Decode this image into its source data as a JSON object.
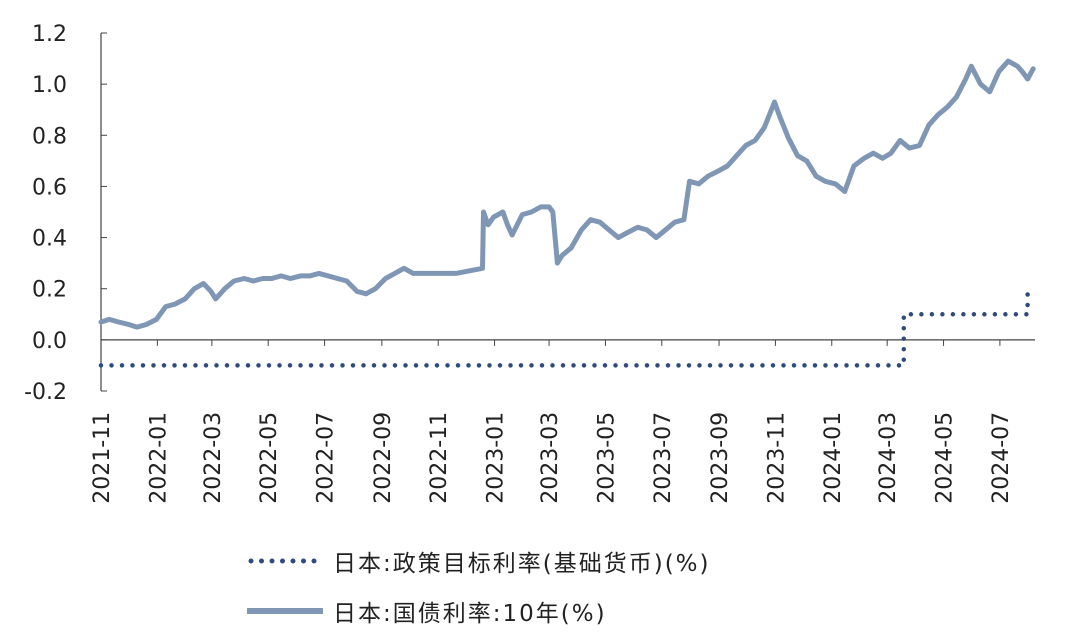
{
  "chart_data": {
    "type": "line",
    "ylim": [
      -0.2,
      1.2
    ],
    "yticks": [
      "1.2",
      "1.0",
      "0.8",
      "0.6",
      "0.4",
      "0.2",
      "0.0",
      "-0.2"
    ],
    "xticks": [
      "2021-11",
      "2022-01",
      "2022-03",
      "2022-05",
      "2022-07",
      "2022-09",
      "2022-11",
      "2023-01",
      "2023-03",
      "2023-05",
      "2023-07",
      "2023-09",
      "2023-11",
      "2024-01",
      "2024-03",
      "2024-05",
      "2024-07"
    ],
    "xlim": [
      "2021-11-01",
      "2024-08-08"
    ],
    "series": [
      {
        "name": "日本:政策目标利率(基础货币)(%)",
        "style": "dotted",
        "color": "#2f4a7d",
        "points": [
          [
            "2021-11-01",
            -0.1
          ],
          [
            "2024-03-18",
            -0.1
          ],
          [
            "2024-03-19",
            0.1
          ],
          [
            "2024-07-30",
            0.1
          ],
          [
            "2024-07-31",
            0.2
          ]
        ]
      },
      {
        "name": "日本:国债利率:10年(%)",
        "style": "solid",
        "color": "#7f97b4",
        "points": [
          [
            "2021-11-01",
            0.07
          ],
          [
            "2021-11-10",
            0.08
          ],
          [
            "2021-11-20",
            0.07
          ],
          [
            "2021-12-01",
            0.06
          ],
          [
            "2021-12-10",
            0.05
          ],
          [
            "2021-12-20",
            0.06
          ],
          [
            "2021-12-31",
            0.08
          ],
          [
            "2022-01-10",
            0.13
          ],
          [
            "2022-01-20",
            0.14
          ],
          [
            "2022-01-31",
            0.16
          ],
          [
            "2022-02-10",
            0.2
          ],
          [
            "2022-02-20",
            0.22
          ],
          [
            "2022-02-28",
            0.19
          ],
          [
            "2022-03-05",
            0.16
          ],
          [
            "2022-03-15",
            0.2
          ],
          [
            "2022-03-25",
            0.23
          ],
          [
            "2022-04-05",
            0.24
          ],
          [
            "2022-04-15",
            0.23
          ],
          [
            "2022-04-25",
            0.24
          ],
          [
            "2022-05-05",
            0.24
          ],
          [
            "2022-05-15",
            0.25
          ],
          [
            "2022-05-25",
            0.24
          ],
          [
            "2022-06-05",
            0.25
          ],
          [
            "2022-06-15",
            0.25
          ],
          [
            "2022-06-25",
            0.26
          ],
          [
            "2022-07-05",
            0.25
          ],
          [
            "2022-07-15",
            0.24
          ],
          [
            "2022-07-25",
            0.23
          ],
          [
            "2022-08-05",
            0.19
          ],
          [
            "2022-08-15",
            0.18
          ],
          [
            "2022-08-25",
            0.2
          ],
          [
            "2022-09-05",
            0.24
          ],
          [
            "2022-09-15",
            0.26
          ],
          [
            "2022-09-25",
            0.28
          ],
          [
            "2022-10-05",
            0.26
          ],
          [
            "2022-10-20",
            0.26
          ],
          [
            "2022-11-05",
            0.26
          ],
          [
            "2022-11-20",
            0.26
          ],
          [
            "2022-12-05",
            0.27
          ],
          [
            "2022-12-19",
            0.28
          ],
          [
            "2022-12-20",
            0.5
          ],
          [
            "2022-12-25",
            0.45
          ],
          [
            "2022-12-31",
            0.48
          ],
          [
            "2023-01-10",
            0.5
          ],
          [
            "2023-01-15",
            0.45
          ],
          [
            "2023-01-20",
            0.41
          ],
          [
            "2023-01-31",
            0.49
          ],
          [
            "2023-02-10",
            0.5
          ],
          [
            "2023-02-20",
            0.52
          ],
          [
            "2023-03-01",
            0.52
          ],
          [
            "2023-03-05",
            0.5
          ],
          [
            "2023-03-10",
            0.3
          ],
          [
            "2023-03-15",
            0.33
          ],
          [
            "2023-03-25",
            0.36
          ],
          [
            "2023-04-05",
            0.43
          ],
          [
            "2023-04-15",
            0.47
          ],
          [
            "2023-04-25",
            0.46
          ],
          [
            "2023-05-05",
            0.43
          ],
          [
            "2023-05-15",
            0.4
          ],
          [
            "2023-05-25",
            0.42
          ],
          [
            "2023-06-05",
            0.44
          ],
          [
            "2023-06-15",
            0.43
          ],
          [
            "2023-06-25",
            0.4
          ],
          [
            "2023-07-05",
            0.43
          ],
          [
            "2023-07-15",
            0.46
          ],
          [
            "2023-07-25",
            0.47
          ],
          [
            "2023-07-31",
            0.62
          ],
          [
            "2023-08-10",
            0.61
          ],
          [
            "2023-08-20",
            0.64
          ],
          [
            "2023-08-31",
            0.66
          ],
          [
            "2023-09-10",
            0.68
          ],
          [
            "2023-09-20",
            0.72
          ],
          [
            "2023-09-30",
            0.76
          ],
          [
            "2023-10-10",
            0.78
          ],
          [
            "2023-10-20",
            0.83
          ],
          [
            "2023-10-31",
            0.93
          ],
          [
            "2023-11-05",
            0.88
          ],
          [
            "2023-11-15",
            0.79
          ],
          [
            "2023-11-25",
            0.72
          ],
          [
            "2023-12-05",
            0.7
          ],
          [
            "2023-12-15",
            0.64
          ],
          [
            "2023-12-25",
            0.62
          ],
          [
            "2024-01-05",
            0.61
          ],
          [
            "2024-01-15",
            0.58
          ],
          [
            "2024-01-25",
            0.68
          ],
          [
            "2024-02-05",
            0.71
          ],
          [
            "2024-02-15",
            0.73
          ],
          [
            "2024-02-25",
            0.71
          ],
          [
            "2024-03-05",
            0.73
          ],
          [
            "2024-03-15",
            0.78
          ],
          [
            "2024-03-25",
            0.75
          ],
          [
            "2024-04-05",
            0.76
          ],
          [
            "2024-04-15",
            0.84
          ],
          [
            "2024-04-25",
            0.88
          ],
          [
            "2024-05-05",
            0.91
          ],
          [
            "2024-05-15",
            0.95
          ],
          [
            "2024-05-25",
            1.02
          ],
          [
            "2024-05-31",
            1.07
          ],
          [
            "2024-06-10",
            1.0
          ],
          [
            "2024-06-20",
            0.97
          ],
          [
            "2024-06-30",
            1.05
          ],
          [
            "2024-07-10",
            1.09
          ],
          [
            "2024-07-20",
            1.07
          ],
          [
            "2024-07-25",
            1.05
          ],
          [
            "2024-07-31",
            1.02
          ],
          [
            "2024-08-06",
            1.06
          ]
        ]
      }
    ]
  },
  "legend": {
    "policy_rate_label": "日本:政策目标利率(基础货币)(%)",
    "jgb_10y_label": "日本:国债利率:10年(%)"
  }
}
